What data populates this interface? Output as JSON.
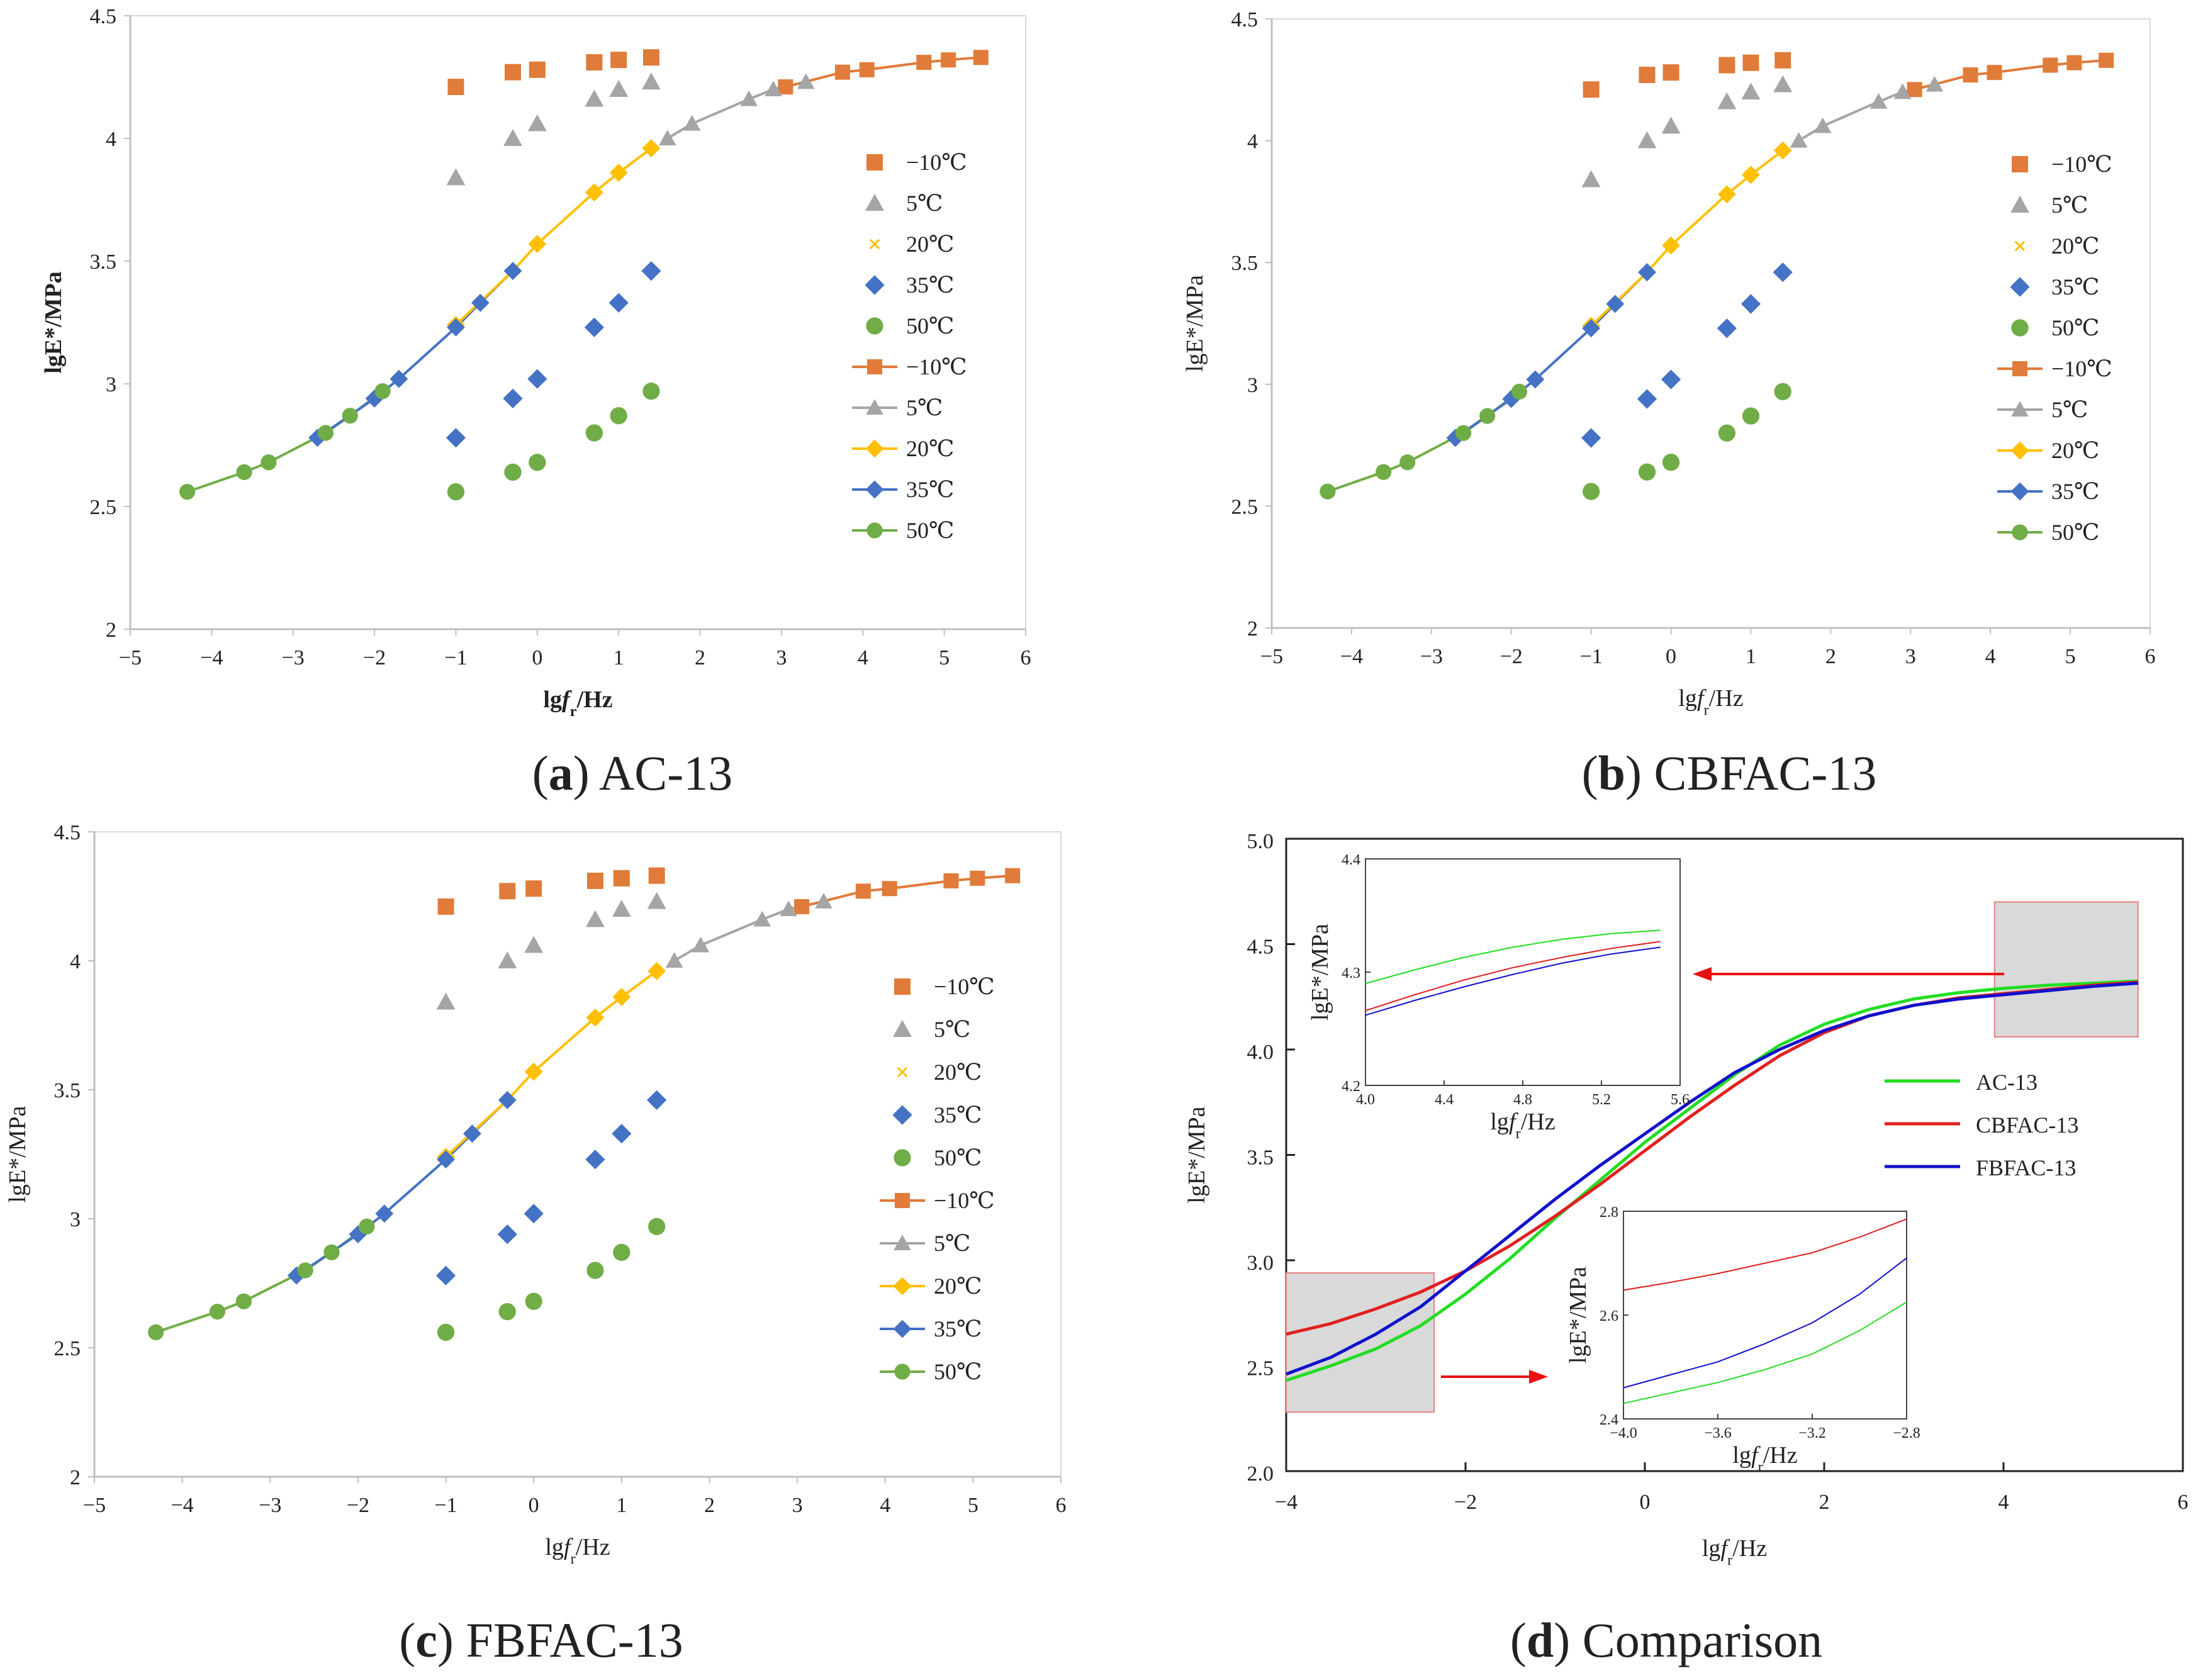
{
  "figure": {
    "panels": [
      {
        "id": "a",
        "letter": "a",
        "name": "AC-13"
      },
      {
        "id": "b",
        "letter": "b",
        "name": "CBFAC-13"
      },
      {
        "id": "c",
        "letter": "c",
        "name": "FBFAC-13"
      },
      {
        "id": "d",
        "letter": "d",
        "name": "Comparison"
      }
    ]
  },
  "colors": {
    "m10": "#E07B39",
    "p5": "#A5A5A5",
    "p20": "#FFC000",
    "p35": "#4472C4",
    "p50": "#70AD47",
    "ac13": "#22DD22",
    "cbfac13": "#E02020",
    "fbfac13": "#1010CC",
    "arrow": "#E81010",
    "zoombox": "#D9D9D9"
  },
  "chart_data": [
    {
      "id": "a",
      "type": "scatter",
      "title": "(a) AC-13",
      "xlabel": "lgfr/Hz",
      "ylabel": "lgE*/MPa",
      "xlim": [
        -5,
        6
      ],
      "ylim": [
        2,
        4.5
      ],
      "xticks": [
        "−5",
        "−4",
        "−3",
        "−2",
        "−1",
        "0",
        "1",
        "2",
        "3",
        "4",
        "5",
        "6"
      ],
      "yticks": [
        "2",
        "2.5",
        "3",
        "3.5",
        "4",
        "4.5"
      ],
      "legend": [
        "−10℃",
        "5℃",
        "20℃",
        "35℃",
        "50℃",
        "−10℃",
        "5℃",
        "20℃",
        "35℃",
        "50℃"
      ],
      "freq_log": [
        -1,
        -0.3,
        0,
        0.7,
        1,
        1.4
      ],
      "raw": {
        "m10": [
          4.21,
          4.27,
          4.28,
          4.31,
          4.32,
          4.33
        ],
        "p5": [
          3.84,
          4.0,
          4.06,
          4.16,
          4.2,
          4.23
        ],
        "p20": [
          3.24,
          3.46,
          3.57,
          3.78,
          3.86,
          3.96
        ],
        "p35": [
          2.78,
          2.94,
          3.02,
          3.23,
          3.33,
          3.46
        ],
        "p50": [
          2.56,
          2.64,
          2.68,
          2.8,
          2.87,
          2.97
        ]
      },
      "shifted": {
        "m10": {
          "x": [
            3.05,
            3.75,
            4.05,
            4.75,
            5.05,
            5.45
          ],
          "y": [
            4.21,
            4.27,
            4.28,
            4.31,
            4.32,
            4.33
          ]
        },
        "p5": {
          "x": [
            1.6,
            1.9,
            2.6,
            2.9,
            3.3
          ],
          "y": [
            4.0,
            4.06,
            4.16,
            4.2,
            4.23
          ]
        },
        "p20": {
          "x": [
            -1,
            -0.3,
            0,
            0.7,
            1,
            1.4
          ],
          "y": [
            3.24,
            3.46,
            3.57,
            3.78,
            3.86,
            3.96
          ]
        },
        "p35": {
          "x": [
            -2.7,
            -2.0,
            -1.7,
            -1.0,
            -0.7,
            -0.3
          ],
          "y": [
            2.78,
            2.94,
            3.02,
            3.23,
            3.33,
            3.46
          ]
        },
        "p50": {
          "x": [
            -4.3,
            -3.6,
            -3.3,
            -2.6,
            -2.3,
            -1.9
          ],
          "y": [
            2.56,
            2.64,
            2.68,
            2.8,
            2.87,
            2.97
          ]
        }
      },
      "cross20": {
        "x": [
          -1,
          -0.3,
          0,
          0.7,
          1,
          1.4
        ],
        "y": [
          3.24,
          3.46,
          3.57,
          3.78,
          3.86,
          3.96
        ]
      }
    },
    {
      "id": "b",
      "type": "scatter",
      "title": "(b) CBFAC-13",
      "xlabel": "lgfr/Hz",
      "ylabel": "lgE*/MPa",
      "xlim": [
        -5,
        6
      ],
      "ylim": [
        2,
        4.5
      ],
      "xticks": [
        "−5",
        "−4",
        "−3",
        "−2",
        "−1",
        "0",
        "1",
        "2",
        "3",
        "4",
        "5",
        "6"
      ],
      "yticks": [
        "2",
        "2.5",
        "3",
        "3.5",
        "4",
        "4.5"
      ],
      "legend": [
        "−10℃",
        "5℃",
        "20℃",
        "35℃",
        "50℃",
        "−10℃",
        "5℃",
        "20℃",
        "35℃",
        "50℃"
      ],
      "freq_log": [
        -1,
        -0.3,
        0,
        0.7,
        1,
        1.4
      ],
      "raw": {
        "m10": [
          4.21,
          4.27,
          4.28,
          4.31,
          4.32,
          4.33
        ],
        "p5": [
          3.84,
          4.0,
          4.06,
          4.16,
          4.2,
          4.23
        ],
        "p20": [
          3.24,
          3.46,
          3.57,
          3.78,
          3.86,
          3.96
        ],
        "p35": [
          2.78,
          2.94,
          3.02,
          3.23,
          3.33,
          3.46
        ],
        "p50": [
          2.56,
          2.64,
          2.68,
          2.8,
          2.87,
          2.97
        ]
      },
      "shifted": {
        "m10": {
          "x": [
            3.05,
            3.75,
            4.05,
            4.75,
            5.05,
            5.45
          ],
          "y": [
            4.21,
            4.27,
            4.28,
            4.31,
            4.32,
            4.33
          ]
        },
        "p5": {
          "x": [
            1.6,
            1.9,
            2.6,
            2.9,
            3.3
          ],
          "y": [
            4.0,
            4.06,
            4.16,
            4.2,
            4.23
          ]
        },
        "p20": {
          "x": [
            -1,
            -0.3,
            0,
            0.7,
            1,
            1.4
          ],
          "y": [
            3.24,
            3.46,
            3.57,
            3.78,
            3.86,
            3.96
          ]
        },
        "p35": {
          "x": [
            -2.7,
            -2.0,
            -1.7,
            -1.0,
            -0.7,
            -0.3
          ],
          "y": [
            2.78,
            2.94,
            3.02,
            3.23,
            3.33,
            3.46
          ]
        },
        "p50": {
          "x": [
            -4.3,
            -3.6,
            -3.3,
            -2.6,
            -2.3,
            -1.9
          ],
          "y": [
            2.56,
            2.64,
            2.68,
            2.8,
            2.87,
            2.97
          ]
        }
      },
      "cross20": {
        "x": [
          -1,
          -0.3,
          0,
          0.7,
          1,
          1.4
        ],
        "y": [
          3.24,
          3.46,
          3.57,
          3.78,
          3.86,
          3.96
        ]
      }
    },
    {
      "id": "c",
      "type": "scatter",
      "title": "(c) FBFAC-13",
      "xlabel": "lgfr/Hz",
      "ylabel": "lgE*/MPa",
      "xlim": [
        -5,
        6
      ],
      "ylim": [
        2,
        4.5
      ],
      "xticks": [
        "−5",
        "−4",
        "−3",
        "−2",
        "−1",
        "0",
        "1",
        "2",
        "3",
        "4",
        "5",
        "6"
      ],
      "yticks": [
        "2",
        "2.5",
        "3",
        "3.5",
        "4",
        "4.5"
      ],
      "legend": [
        "−10℃",
        "5℃",
        "20℃",
        "35℃",
        "50℃",
        "−10℃",
        "5℃",
        "20℃",
        "35℃",
        "50℃"
      ],
      "freq_log": [
        -1,
        -0.3,
        0,
        0.7,
        1,
        1.4
      ],
      "raw": {
        "m10": [
          4.21,
          4.27,
          4.28,
          4.31,
          4.32,
          4.33
        ],
        "p5": [
          3.84,
          4.0,
          4.06,
          4.16,
          4.2,
          4.23
        ],
        "p20": [
          3.24,
          3.46,
          3.57,
          3.78,
          3.86,
          3.96
        ],
        "p35": [
          2.78,
          2.94,
          3.02,
          3.23,
          3.33,
          3.46
        ],
        "p50": [
          2.56,
          2.64,
          2.68,
          2.8,
          2.87,
          2.97
        ]
      },
      "shifted": {
        "m10": {
          "x": [
            3.05,
            3.75,
            4.05,
            4.75,
            5.05,
            5.45
          ],
          "y": [
            4.21,
            4.27,
            4.28,
            4.31,
            4.32,
            4.33
          ]
        },
        "p5": {
          "x": [
            1.6,
            1.9,
            2.6,
            2.9,
            3.3
          ],
          "y": [
            4.0,
            4.06,
            4.16,
            4.2,
            4.23
          ]
        },
        "p20": {
          "x": [
            -1,
            -0.3,
            0,
            0.7,
            1,
            1.4
          ],
          "y": [
            3.24,
            3.46,
            3.57,
            3.78,
            3.86,
            3.96
          ]
        },
        "p35": {
          "x": [
            -2.7,
            -2.0,
            -1.7,
            -1.0,
            -0.7,
            -0.3
          ],
          "y": [
            2.78,
            2.94,
            3.02,
            3.23,
            3.33,
            3.46
          ]
        },
        "p50": {
          "x": [
            -4.3,
            -3.6,
            -3.3,
            -2.6,
            -2.3,
            -1.9
          ],
          "y": [
            2.56,
            2.64,
            2.68,
            2.8,
            2.87,
            2.97
          ]
        }
      },
      "cross20": {
        "x": [
          -1,
          -0.3,
          0,
          0.7,
          1,
          1.4
        ],
        "y": [
          3.24,
          3.46,
          3.57,
          3.78,
          3.86,
          3.96
        ]
      }
    },
    {
      "id": "d",
      "type": "line",
      "title": "(d) Comparison",
      "xlabel": "lgfr/Hz",
      "ylabel": "lgE*/MPa",
      "xlim": [
        -4,
        6
      ],
      "ylim": [
        2.0,
        5.0
      ],
      "xticks": [
        "−4",
        "−2",
        "0",
        "2",
        "4",
        "6"
      ],
      "yticks": [
        "2.0",
        "2.5",
        "3.0",
        "3.5",
        "4.0",
        "4.5",
        "5.0"
      ],
      "legend": [
        "AC-13",
        "CBFAC-13",
        "FBFAC-13"
      ],
      "series": [
        {
          "name": "AC-13",
          "x": [
            -4,
            -3.5,
            -3,
            -2.5,
            -2,
            -1.5,
            -1,
            -0.5,
            0,
            0.5,
            1,
            1.5,
            2,
            2.5,
            3,
            3.5,
            4,
            4.5,
            5,
            5.5
          ],
          "y": [
            2.43,
            2.5,
            2.58,
            2.69,
            2.84,
            3.01,
            3.2,
            3.38,
            3.56,
            3.72,
            3.88,
            4.02,
            4.12,
            4.19,
            4.24,
            4.27,
            4.29,
            4.305,
            4.315,
            4.325
          ]
        },
        {
          "name": "CBFAC-13",
          "x": [
            -4,
            -3.5,
            -3,
            -2.5,
            -2,
            -1.5,
            -1,
            -0.5,
            0,
            0.5,
            1,
            1.5,
            2,
            2.5,
            3,
            3.5,
            4,
            4.5,
            5,
            5.5
          ],
          "y": [
            2.65,
            2.7,
            2.77,
            2.85,
            2.95,
            3.07,
            3.21,
            3.36,
            3.52,
            3.68,
            3.83,
            3.97,
            4.08,
            4.16,
            4.21,
            4.245,
            4.265,
            4.285,
            4.305,
            4.32
          ]
        },
        {
          "name": "FBFAC-13",
          "x": [
            -4,
            -3.5,
            -3,
            -2.5,
            -2,
            -1.5,
            -1,
            -0.5,
            0,
            0.5,
            1,
            1.5,
            2,
            2.5,
            3,
            3.5,
            4,
            4.5,
            5,
            5.5
          ],
          "y": [
            2.46,
            2.54,
            2.65,
            2.78,
            2.95,
            3.12,
            3.29,
            3.45,
            3.6,
            3.75,
            3.89,
            4.0,
            4.09,
            4.16,
            4.21,
            4.24,
            4.26,
            4.28,
            4.3,
            4.315
          ]
        }
      ],
      "zoom_regions": [
        {
          "xlim": [
            3.9,
            5.5
          ],
          "ylim": [
            4.06,
            4.7
          ]
        },
        {
          "xlim": [
            -4,
            -2.35
          ],
          "ylim": [
            2.28,
            2.94
          ]
        }
      ],
      "inset_top": {
        "xlabel": "lgfr/Hz",
        "ylabel": "lgE*/MPa",
        "xlim": [
          4.0,
          5.6
        ],
        "ylim": [
          4.2,
          4.4
        ],
        "xticks": [
          "4.0",
          "4.4",
          "4.8",
          "5.2",
          "5.6"
        ],
        "yticks": [
          "4.2",
          "4.3",
          "4.4"
        ],
        "series": [
          {
            "name": "AC-13",
            "x": [
              4.0,
              4.25,
              4.5,
              4.75,
              5.0,
              5.25,
              5.5
            ],
            "y": [
              4.29,
              4.302,
              4.313,
              4.322,
              4.329,
              4.334,
              4.337
            ]
          },
          {
            "name": "CBFAC-13",
            "x": [
              4.0,
              4.25,
              4.5,
              4.75,
              5.0,
              5.25,
              5.5
            ],
            "y": [
              4.266,
              4.28,
              4.293,
              4.304,
              4.313,
              4.321,
              4.327
            ]
          },
          {
            "name": "FBFAC-13",
            "x": [
              4.0,
              4.25,
              4.5,
              4.75,
              5.0,
              5.25,
              5.5
            ],
            "y": [
              4.262,
              4.275,
              4.287,
              4.298,
              4.308,
              4.316,
              4.322
            ]
          }
        ]
      },
      "inset_bottom": {
        "xlabel": "lgfr/Hz",
        "ylabel": "lgE*/MPa",
        "xlim": [
          -4.0,
          -2.8
        ],
        "ylim": [
          2.4,
          2.8
        ],
        "xticks": [
          "−4.0",
          "−3.6",
          "−3.2",
          "−2.8"
        ],
        "yticks": [
          "2.4",
          "2.6",
          "2.8"
        ],
        "series": [
          {
            "name": "AC-13",
            "x": [
              -4.0,
              -3.8,
              -3.6,
              -3.4,
              -3.2,
              -3.0,
              -2.8
            ],
            "y": [
              2.43,
              2.45,
              2.47,
              2.495,
              2.525,
              2.57,
              2.625
            ]
          },
          {
            "name": "CBFAC-13",
            "x": [
              -4.0,
              -3.8,
              -3.6,
              -3.4,
              -3.2,
              -3.0,
              -2.8
            ],
            "y": [
              2.648,
              2.663,
              2.68,
              2.7,
              2.72,
              2.75,
              2.785
            ]
          },
          {
            "name": "FBFAC-13",
            "x": [
              -4.0,
              -3.8,
              -3.6,
              -3.4,
              -3.2,
              -3.0,
              -2.8
            ],
            "y": [
              2.46,
              2.485,
              2.51,
              2.545,
              2.585,
              2.64,
              2.71
            ]
          }
        ]
      }
    }
  ]
}
